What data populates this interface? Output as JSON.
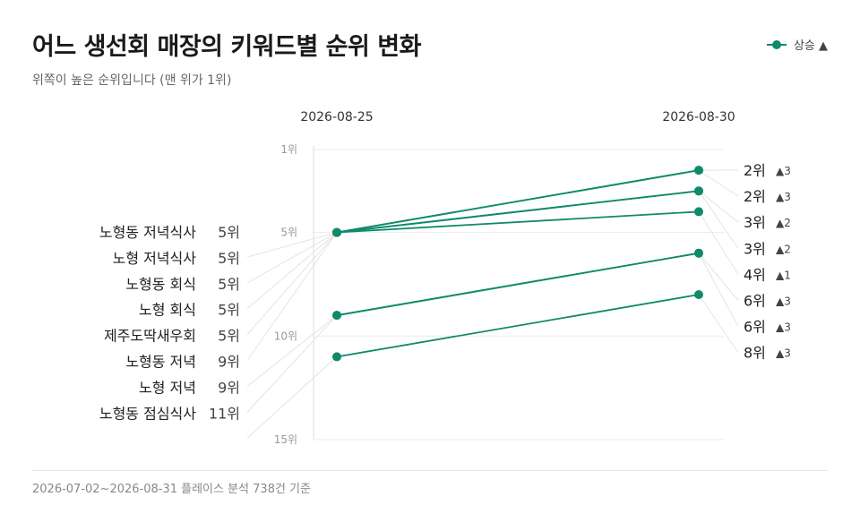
{
  "header": {
    "title": "어느 생선회 매장의 키워드별 순위 변화",
    "subtitle": "위쪽이 높은 순위입니다 (맨 위가 1위)"
  },
  "legend": {
    "label": "상승 ▲",
    "color": "#108a6a"
  },
  "footer": {
    "text": "2026-07-02~2026-08-31 플레이스 분석 738건 기준"
  },
  "chart_data": {
    "type": "slope",
    "x": [
      "2026-08-25",
      "2026-08-30"
    ],
    "ylim": [
      1,
      15
    ],
    "y_inverted": true,
    "yticks": [
      1,
      5,
      10,
      15
    ],
    "ytick_labels": [
      "1위",
      "5위",
      "10위",
      "15위"
    ],
    "rank_suffix": "위",
    "up_marker": "▲",
    "grid": true,
    "series": [
      {
        "name": "노형동 저녁식사",
        "start": 5,
        "end": 2,
        "change": 3
      },
      {
        "name": "노형 저녁식사",
        "start": 5,
        "end": 2,
        "change": 3
      },
      {
        "name": "노형동 회식",
        "start": 5,
        "end": 3,
        "change": 2
      },
      {
        "name": "노형 회식",
        "start": 5,
        "end": 3,
        "change": 2
      },
      {
        "name": "제주도딱새우회",
        "start": 5,
        "end": 4,
        "change": 1
      },
      {
        "name": "노형동 저녁",
        "start": 9,
        "end": 6,
        "change": 3
      },
      {
        "name": "노형 저녁",
        "start": 9,
        "end": 6,
        "change": 3
      },
      {
        "name": "노형동 점심식사",
        "start": 11,
        "end": 8,
        "change": 3
      }
    ]
  }
}
